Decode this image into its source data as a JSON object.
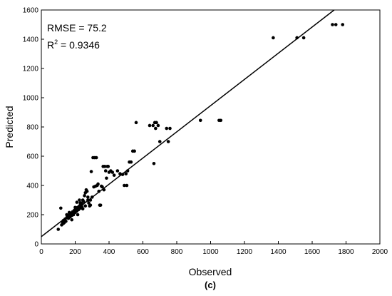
{
  "chart_data": {
    "type": "scatter",
    "xlabel": "Observed",
    "ylabel": "Predicted",
    "xlim": [
      0,
      2000
    ],
    "ylim": [
      0,
      1600
    ],
    "xticks": [
      0,
      200,
      400,
      600,
      800,
      1000,
      1200,
      1400,
      1600,
      1800,
      2000
    ],
    "yticks": [
      0,
      200,
      400,
      600,
      800,
      1000,
      1200,
      1400,
      1600
    ],
    "grid": false,
    "legend": "none",
    "annotations": {
      "rmse": "RMSE = 75.2",
      "r2_prefix": "R",
      "r2_sup": "2",
      "r2_suffix": " = 0.9346"
    },
    "panel_label": "(c)",
    "fit_line": {
      "x": [
        0,
        1730
      ],
      "y": [
        50,
        1600
      ]
    },
    "points": [
      [
        100,
        100
      ],
      [
        115,
        245
      ],
      [
        120,
        130
      ],
      [
        125,
        150
      ],
      [
        130,
        160
      ],
      [
        135,
        145
      ],
      [
        140,
        170
      ],
      [
        145,
        155
      ],
      [
        150,
        180
      ],
      [
        155,
        190
      ],
      [
        160,
        175
      ],
      [
        165,
        200
      ],
      [
        170,
        185
      ],
      [
        175,
        210
      ],
      [
        180,
        195
      ],
      [
        185,
        220
      ],
      [
        190,
        200
      ],
      [
        195,
        230
      ],
      [
        200,
        215
      ],
      [
        205,
        240
      ],
      [
        210,
        225
      ],
      [
        215,
        250
      ],
      [
        220,
        235
      ],
      [
        225,
        260
      ],
      [
        230,
        245
      ],
      [
        235,
        280
      ],
      [
        240,
        270
      ],
      [
        245,
        300
      ],
      [
        250,
        290
      ],
      [
        255,
        330
      ],
      [
        260,
        350
      ],
      [
        265,
        370
      ],
      [
        270,
        360
      ],
      [
        275,
        300
      ],
      [
        280,
        280
      ],
      [
        285,
        260
      ],
      [
        290,
        300
      ],
      [
        295,
        495
      ],
      [
        300,
        320
      ],
      [
        305,
        590
      ],
      [
        310,
        390
      ],
      [
        315,
        590
      ],
      [
        320,
        395
      ],
      [
        325,
        590
      ],
      [
        330,
        400
      ],
      [
        335,
        410
      ],
      [
        340,
        360
      ],
      [
        345,
        265
      ],
      [
        350,
        265
      ],
      [
        355,
        395
      ],
      [
        360,
        390
      ],
      [
        365,
        530
      ],
      [
        370,
        370
      ],
      [
        375,
        530
      ],
      [
        380,
        500
      ],
      [
        385,
        450
      ],
      [
        390,
        530
      ],
      [
        395,
        530
      ],
      [
        400,
        490
      ],
      [
        410,
        500
      ],
      [
        420,
        490
      ],
      [
        430,
        470
      ],
      [
        450,
        500
      ],
      [
        465,
        480
      ],
      [
        480,
        475
      ],
      [
        490,
        400
      ],
      [
        500,
        480
      ],
      [
        505,
        400
      ],
      [
        510,
        500
      ],
      [
        520,
        560
      ],
      [
        530,
        560
      ],
      [
        540,
        635
      ],
      [
        550,
        635
      ],
      [
        560,
        830
      ],
      [
        640,
        810
      ],
      [
        660,
        810
      ],
      [
        665,
        550
      ],
      [
        670,
        830
      ],
      [
        675,
        790
      ],
      [
        680,
        830
      ],
      [
        690,
        810
      ],
      [
        700,
        700
      ],
      [
        740,
        790
      ],
      [
        760,
        790
      ],
      [
        750,
        700
      ],
      [
        940,
        845
      ],
      [
        1050,
        845
      ],
      [
        1060,
        845
      ],
      [
        1370,
        1410
      ],
      [
        1510,
        1410
      ],
      [
        1550,
        1410
      ],
      [
        1720,
        1500
      ],
      [
        1740,
        1500
      ],
      [
        1780,
        1500
      ],
      [
        130,
        140
      ],
      [
        150,
        200
      ],
      [
        165,
        215
      ],
      [
        185,
        200
      ],
      [
        200,
        250
      ],
      [
        215,
        200
      ],
      [
        230,
        280
      ],
      [
        245,
        240
      ],
      [
        210,
        285
      ],
      [
        225,
        300
      ],
      [
        240,
        250
      ],
      [
        260,
        260
      ],
      [
        275,
        320
      ],
      [
        290,
        265
      ],
      [
        180,
        165
      ],
      [
        195,
        215
      ]
    ]
  }
}
